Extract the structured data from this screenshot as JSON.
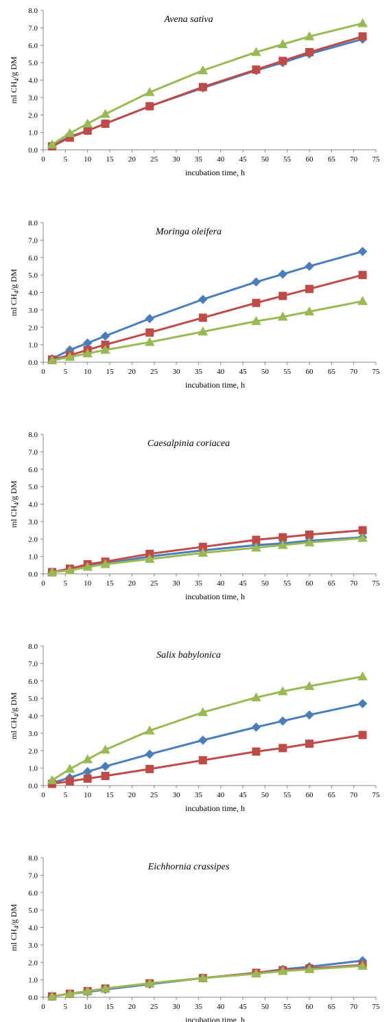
{
  "chart_data": [
    {
      "type": "line",
      "title": "Avena sativa",
      "xlabel": "incubation time, h",
      "ylabel": "ml CH4/g DM",
      "xlim": [
        0,
        75
      ],
      "ylim": [
        0,
        8
      ],
      "xticks": [
        "0",
        "5",
        "10",
        "15",
        "20",
        "25",
        "30",
        "35",
        "40",
        "45",
        "50",
        "55",
        "60",
        "65",
        "70",
        "75"
      ],
      "yticks": [
        "0.0",
        "1.0",
        "2.0",
        "3.0",
        "4.0",
        "5.0",
        "6.0",
        "7.0",
        "8.0"
      ],
      "x": [
        2,
        6,
        10,
        14,
        24,
        36,
        48,
        54,
        60,
        72
      ],
      "series": [
        {
          "color": "#4a7ebb",
          "marker": "diamond",
          "values": [
            0.25,
            0.75,
            1.1,
            1.5,
            2.5,
            3.55,
            4.55,
            5.0,
            5.5,
            6.35
          ]
        },
        {
          "color": "#be4b48",
          "marker": "square",
          "values": [
            0.2,
            0.7,
            1.1,
            1.5,
            2.5,
            3.6,
            4.6,
            5.1,
            5.6,
            6.5
          ]
        },
        {
          "color": "#98b954",
          "marker": "triangle",
          "values": [
            0.3,
            0.95,
            1.5,
            2.05,
            3.3,
            4.55,
            5.6,
            6.05,
            6.5,
            7.25
          ]
        }
      ]
    },
    {
      "type": "line",
      "title": "Moringa oleifera",
      "xlabel": "incubation time, h",
      "ylabel": "ml CH4/g DM",
      "xlim": [
        0,
        75
      ],
      "ylim": [
        0,
        8
      ],
      "xticks": [
        "0",
        "5",
        "10",
        "15",
        "20",
        "25",
        "30",
        "35",
        "40",
        "45",
        "50",
        "55",
        "60",
        "65",
        "70",
        "75"
      ],
      "yticks": [
        "0.0",
        "1.0",
        "2.0",
        "3.0",
        "4.0",
        "5.0",
        "6.0",
        "7.0",
        "8.0"
      ],
      "x": [
        2,
        6,
        10,
        14,
        24,
        36,
        48,
        54,
        60,
        72
      ],
      "series": [
        {
          "color": "#4a7ebb",
          "marker": "diamond",
          "values": [
            0.2,
            0.7,
            1.1,
            1.5,
            2.5,
            3.6,
            4.6,
            5.05,
            5.5,
            6.35
          ]
        },
        {
          "color": "#be4b48",
          "marker": "square",
          "values": [
            0.15,
            0.4,
            0.7,
            1.0,
            1.7,
            2.55,
            3.4,
            3.8,
            4.2,
            5.0
          ]
        },
        {
          "color": "#98b954",
          "marker": "triangle",
          "values": [
            0.1,
            0.3,
            0.5,
            0.7,
            1.15,
            1.75,
            2.35,
            2.6,
            2.9,
            3.5
          ]
        }
      ]
    },
    {
      "type": "line",
      "title": "Caesalpinia coriacea",
      "xlabel": "incubation time, h",
      "ylabel": "ml CH4/g DM",
      "xlim": [
        0,
        75
      ],
      "ylim": [
        0,
        8
      ],
      "xticks": [
        "0",
        "5",
        "10",
        "15",
        "20",
        "25",
        "30",
        "35",
        "40",
        "45",
        "50",
        "55",
        "60",
        "65",
        "70",
        "75"
      ],
      "yticks": [
        "0.0",
        "1.0",
        "2.0",
        "3.0",
        "4.0",
        "5.0",
        "6.0",
        "7.0",
        "8.0"
      ],
      "x": [
        2,
        6,
        10,
        14,
        24,
        36,
        48,
        54,
        60,
        72
      ],
      "series": [
        {
          "color": "#4a7ebb",
          "marker": "diamond",
          "values": [
            0.1,
            0.25,
            0.45,
            0.6,
            1.0,
            1.35,
            1.65,
            1.75,
            1.9,
            2.1
          ]
        },
        {
          "color": "#be4b48",
          "marker": "square",
          "values": [
            0.1,
            0.3,
            0.55,
            0.7,
            1.15,
            1.55,
            1.95,
            2.1,
            2.25,
            2.5
          ]
        },
        {
          "color": "#98b954",
          "marker": "triangle",
          "values": [
            0.1,
            0.2,
            0.4,
            0.55,
            0.85,
            1.2,
            1.5,
            1.65,
            1.8,
            2.05
          ]
        }
      ]
    },
    {
      "type": "line",
      "title": "Salix babylonica",
      "xlabel": "incubation time, h",
      "ylabel": "ml CH4/g DM",
      "xlim": [
        0,
        75
      ],
      "ylim": [
        0,
        8
      ],
      "xticks": [
        "0",
        "5",
        "10",
        "15",
        "20",
        "25",
        "30",
        "35",
        "40",
        "45",
        "50",
        "55",
        "60",
        "65",
        "70",
        "75"
      ],
      "yticks": [
        "0.0",
        "1.0",
        "2.0",
        "3.0",
        "4.0",
        "5.0",
        "6.0",
        "7.0",
        "8.0"
      ],
      "x": [
        2,
        6,
        10,
        14,
        24,
        36,
        48,
        54,
        60,
        72
      ],
      "series": [
        {
          "color": "#4a7ebb",
          "marker": "diamond",
          "values": [
            0.15,
            0.45,
            0.8,
            1.1,
            1.8,
            2.6,
            3.35,
            3.7,
            4.05,
            4.7
          ]
        },
        {
          "color": "#be4b48",
          "marker": "square",
          "values": [
            0.1,
            0.25,
            0.4,
            0.55,
            0.95,
            1.45,
            1.95,
            2.15,
            2.4,
            2.9
          ]
        },
        {
          "color": "#98b954",
          "marker": "triangle",
          "values": [
            0.3,
            0.95,
            1.5,
            2.05,
            3.15,
            4.2,
            5.05,
            5.4,
            5.7,
            6.25
          ]
        }
      ]
    },
    {
      "type": "line",
      "title": "Eichhornia crassipes",
      "xlabel": "incubation time, h",
      "ylabel": "ml CH4/g DM",
      "xlim": [
        0,
        75
      ],
      "ylim": [
        0,
        8
      ],
      "xticks": [
        "0",
        "5",
        "10",
        "15",
        "20",
        "25",
        "30",
        "35",
        "40",
        "45",
        "50",
        "55",
        "60",
        "65",
        "70",
        "75"
      ],
      "yticks": [
        "0.0",
        "1.0",
        "2.0",
        "3.0",
        "4.0",
        "5.0",
        "6.0",
        "7.0",
        "8.0"
      ],
      "x": [
        2,
        6,
        10,
        14,
        24,
        36,
        48,
        54,
        60,
        72
      ],
      "series": [
        {
          "color": "#4a7ebb",
          "marker": "diamond",
          "values": [
            0.05,
            0.2,
            0.3,
            0.45,
            0.75,
            1.1,
            1.4,
            1.6,
            1.75,
            2.1
          ]
        },
        {
          "color": "#be4b48",
          "marker": "square",
          "values": [
            0.05,
            0.2,
            0.35,
            0.5,
            0.8,
            1.1,
            1.4,
            1.55,
            1.65,
            1.85
          ]
        },
        {
          "color": "#98b954",
          "marker": "triangle",
          "values": [
            0.05,
            0.2,
            0.35,
            0.5,
            0.8,
            1.1,
            1.35,
            1.5,
            1.6,
            1.8
          ]
        }
      ]
    }
  ]
}
